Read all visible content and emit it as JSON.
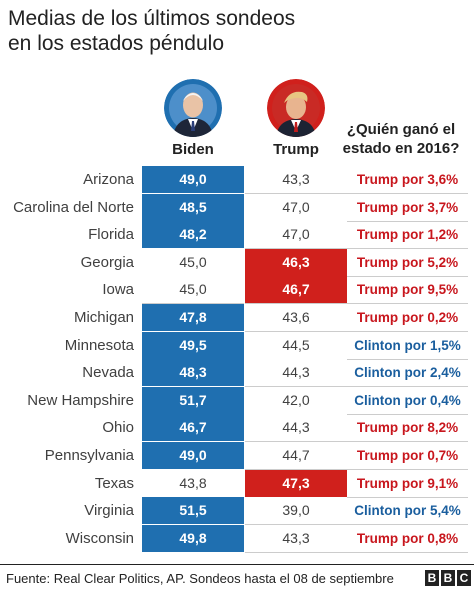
{
  "chart_data": {
    "type": "table",
    "title_lines": [
      "Medias de los últimos sondeos",
      "en los estados péndulo"
    ],
    "columns": {
      "biden": "Biden",
      "trump": "Trump",
      "winner_2016": "¿Quién ganó el estado en 2016?"
    },
    "rows": [
      {
        "state": "Arizona",
        "biden": "49,0",
        "trump": "43,3",
        "result": "Trump por 3,6%",
        "leader": "biden",
        "winner2016": "trump"
      },
      {
        "state": "Carolina del Norte",
        "biden": "48,5",
        "trump": "47,0",
        "result": "Trump por 3,7%",
        "leader": "biden",
        "winner2016": "trump"
      },
      {
        "state": "Florida",
        "biden": "48,2",
        "trump": "47,0",
        "result": "Trump por 1,2%",
        "leader": "biden",
        "winner2016": "trump"
      },
      {
        "state": "Georgia",
        "biden": "45,0",
        "trump": "46,3",
        "result": "Trump por 5,2%",
        "leader": "trump",
        "winner2016": "trump"
      },
      {
        "state": "Iowa",
        "biden": "45,0",
        "trump": "46,7",
        "result": "Trump por 9,5%",
        "leader": "trump",
        "winner2016": "trump"
      },
      {
        "state": "Michigan",
        "biden": "47,8",
        "trump": "43,6",
        "result": "Trump por 0,2%",
        "leader": "biden",
        "winner2016": "trump"
      },
      {
        "state": "Minnesota",
        "biden": "49,5",
        "trump": "44,5",
        "result": "Clinton por 1,5%",
        "leader": "biden",
        "winner2016": "clinton"
      },
      {
        "state": "Nevada",
        "biden": "48,3",
        "trump": "44,3",
        "result": "Clinton por 2,4%",
        "leader": "biden",
        "winner2016": "clinton"
      },
      {
        "state": "New Hampshire",
        "biden": "51,7",
        "trump": "42,0",
        "result": "Clinton por 0,4%",
        "leader": "biden",
        "winner2016": "clinton"
      },
      {
        "state": "Ohio",
        "biden": "46,7",
        "trump": "44,3",
        "result": "Trump por 8,2%",
        "leader": "biden",
        "winner2016": "trump"
      },
      {
        "state": "Pennsylvania",
        "biden": "49,0",
        "trump": "44,7",
        "result": "Trump por 0,7%",
        "leader": "biden",
        "winner2016": "trump"
      },
      {
        "state": "Texas",
        "biden": "43,8",
        "trump": "47,3",
        "result": "Trump por 9,1%",
        "leader": "trump",
        "winner2016": "trump"
      },
      {
        "state": "Virginia",
        "biden": "51,5",
        "trump": "39,0",
        "result": "Clinton por 5,4%",
        "leader": "biden",
        "winner2016": "clinton"
      },
      {
        "state": "Wisconsin",
        "biden": "49,8",
        "trump": "43,3",
        "result": "Trump por 0,8%",
        "leader": "biden",
        "winner2016": "trump"
      }
    ]
  },
  "colors": {
    "biden_blue": "#1f6fb0",
    "trump_red": "#d0201c",
    "clinton_text": "#1a5e9e",
    "trump_text": "#c8161d"
  },
  "footer": {
    "source": "Fuente: Real Clear Politics, AP. Sondeos hasta el 08 de septiembre",
    "logo_letters": [
      "B",
      "B",
      "C"
    ]
  }
}
